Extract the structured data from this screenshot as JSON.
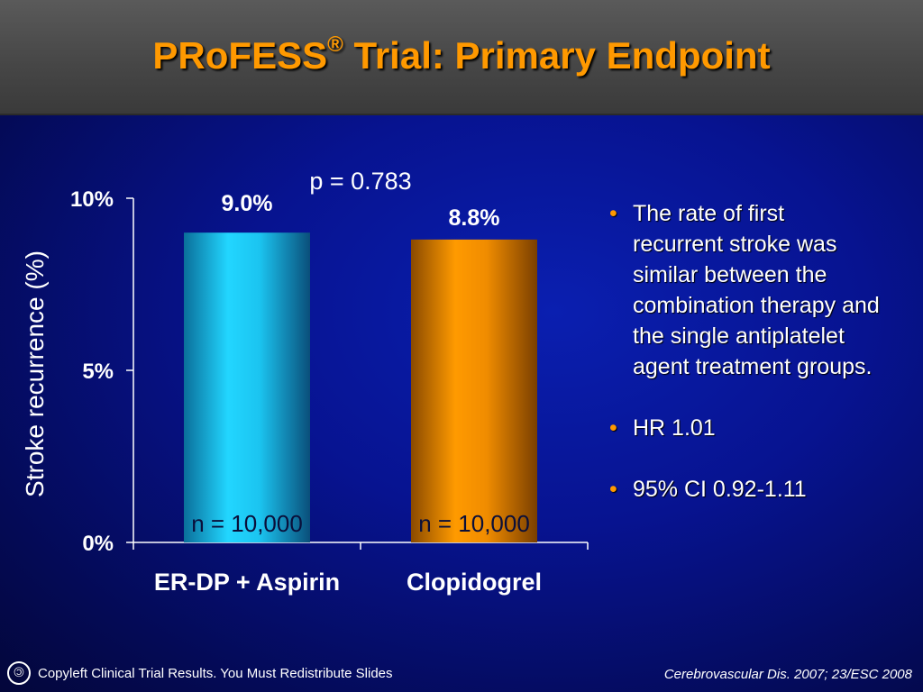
{
  "title": {
    "main": "PRoFESS",
    "sup": "®",
    "rest": " Trial: Primary Endpoint"
  },
  "colors": {
    "accent": "#ff9900",
    "bar1": "#22d6ff",
    "bar2": "#ff9a00",
    "background": "#071390"
  },
  "chart_data": {
    "type": "bar",
    "categories": [
      "ER-DP + Aspirin",
      "Clopidogrel"
    ],
    "values": [
      9.0,
      8.8
    ],
    "value_labels": [
      "9.0%",
      "8.8%"
    ],
    "n_labels": [
      "n = 10,000",
      "n = 10,000"
    ],
    "ylabel": "Stroke recurrence (%)",
    "xlabel": "",
    "ylim": [
      0,
      10
    ],
    "yticks": [
      0,
      5,
      10
    ],
    "ytick_labels": [
      "0%",
      "5%",
      "10%"
    ],
    "annotation": "p = 0.783",
    "grid": false
  },
  "bullets": [
    "The rate of first recurrent stroke was similar between the combination therapy and the single antiplatelet agent treatment groups.",
    "HR 1.01",
    "95% CI 0.92-1.11"
  ],
  "bullet_symbol": "•",
  "footer": {
    "copyleft_icon": "copyleft-icon",
    "left_text": "Copyleft Clinical Trial Results. You Must Redistribute Slides",
    "right_text": "Cerebrovascular Dis. 2007; 23/ESC 2008"
  }
}
